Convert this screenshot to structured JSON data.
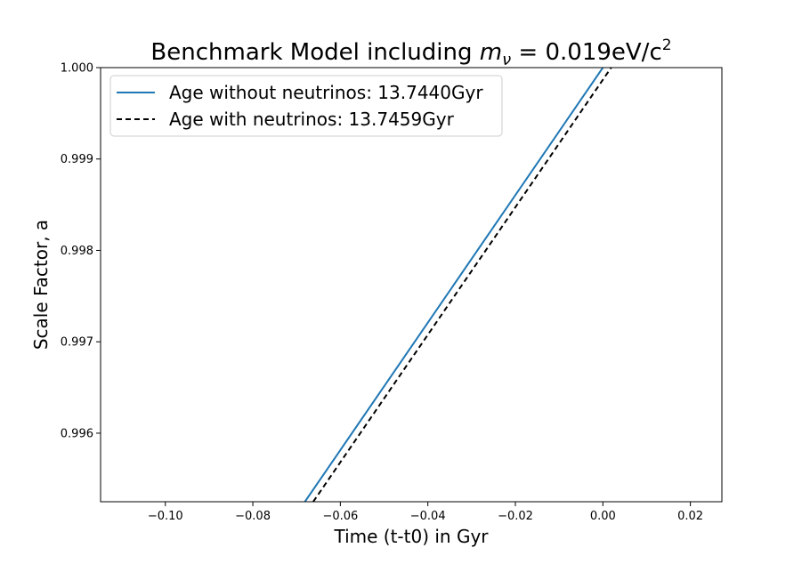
{
  "chart_data": {
    "type": "line",
    "title_prefix": "Benchmark Model including ",
    "title_math": {
      "symbol": "m",
      "subscript": "ν",
      "rest": " = 0.019eV/c",
      "superscript": "2"
    },
    "xlabel": "Time (t-t0) in Gyr",
    "ylabel": "Scale Factor, a",
    "xlim": [
      -0.1148,
      0.0272
    ],
    "ylim": [
      0.99525,
      1.0
    ],
    "xticks": [
      -0.1,
      -0.08,
      -0.06,
      -0.04,
      -0.02,
      0.0,
      0.02
    ],
    "xtick_labels": [
      "−0.10",
      "−0.08",
      "−0.06",
      "−0.04",
      "−0.02",
      "0.00",
      "0.02"
    ],
    "yticks": [
      0.996,
      0.997,
      0.998,
      0.999,
      1.0
    ],
    "ytick_labels": [
      "0.996",
      "0.997",
      "0.998",
      "0.999",
      "1.000"
    ],
    "grid": false,
    "legend_position": "upper-left",
    "series": [
      {
        "name": "Age without neutrinos: 13.7440Gyr",
        "color": "#1f77b4",
        "style": "solid",
        "x": [
          -0.0681,
          0.0
        ],
        "y": [
          0.99525,
          1.0
        ]
      },
      {
        "name": "Age with neutrinos: 13.7459Gyr",
        "color": "#000000",
        "style": "dashed",
        "x": [
          -0.0662,
          0.0019
        ],
        "y": [
          0.99525,
          1.0
        ]
      }
    ]
  }
}
